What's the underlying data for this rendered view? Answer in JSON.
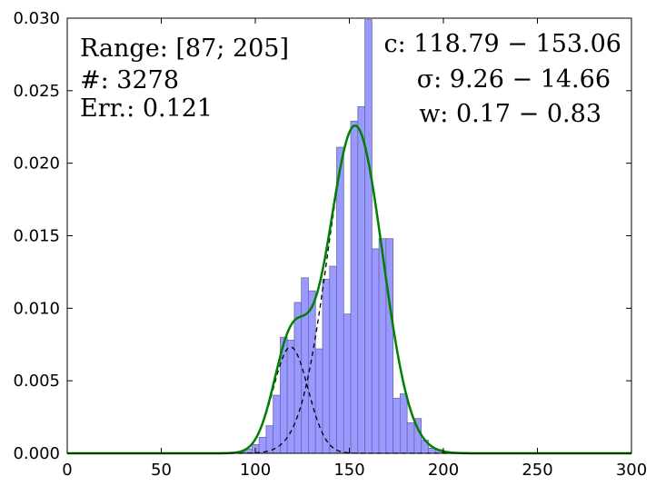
{
  "chart_data": {
    "type": "bar",
    "title": "",
    "xlabel": "",
    "ylabel": "",
    "xlim": [
      0,
      300
    ],
    "ylim": [
      0,
      0.03
    ],
    "x_ticks": [
      "0",
      "50",
      "100",
      "150",
      "200",
      "250",
      "300"
    ],
    "y_ticks": [
      "0.000",
      "0.005",
      "0.010",
      "0.015",
      "0.020",
      "0.025",
      "0.030"
    ],
    "grid": false,
    "colors": {
      "histogram_fill": "#9999ff",
      "histogram_edge": "#6a6aa8",
      "fit_line": "#008000",
      "component_line": "#000000"
    },
    "histogram": {
      "bin_width": 3.75,
      "bins": [
        {
          "x0": 87.0,
          "density": 8e-05
        },
        {
          "x0": 90.75,
          "density": 8e-05
        },
        {
          "x0": 94.5,
          "density": 0.0003
        },
        {
          "x0": 98.25,
          "density": 0.0006
        },
        {
          "x0": 102.0,
          "density": 0.0011
        },
        {
          "x0": 105.75,
          "density": 0.0019
        },
        {
          "x0": 109.5,
          "density": 0.004
        },
        {
          "x0": 113.25,
          "density": 0.008
        },
        {
          "x0": 117.0,
          "density": 0.0078
        },
        {
          "x0": 120.75,
          "density": 0.0104
        },
        {
          "x0": 124.5,
          "density": 0.0121
        },
        {
          "x0": 128.25,
          "density": 0.0112
        },
        {
          "x0": 132.0,
          "density": 0.0072
        },
        {
          "x0": 135.75,
          "density": 0.012
        },
        {
          "x0": 139.5,
          "density": 0.0129
        },
        {
          "x0": 143.25,
          "density": 0.0211
        },
        {
          "x0": 147.0,
          "density": 0.0096
        },
        {
          "x0": 150.75,
          "density": 0.0229
        },
        {
          "x0": 154.5,
          "density": 0.0239
        },
        {
          "x0": 158.25,
          "density": 0.0299
        },
        {
          "x0": 162.0,
          "density": 0.0141
        },
        {
          "x0": 165.75,
          "density": 0.0148
        },
        {
          "x0": 169.5,
          "density": 0.0148
        },
        {
          "x0": 173.25,
          "density": 0.0038
        },
        {
          "x0": 177.0,
          "density": 0.0041
        },
        {
          "x0": 180.75,
          "density": 0.0021
        },
        {
          "x0": 184.5,
          "density": 0.0024
        },
        {
          "x0": 188.25,
          "density": 0.0009
        },
        {
          "x0": 192.0,
          "density": 0.00035
        },
        {
          "x0": 195.75,
          "density": 0.00025
        },
        {
          "x0": 199.5,
          "density": 8e-05
        }
      ]
    },
    "fit": {
      "components": [
        {
          "weight": 0.17,
          "mean": 118.79,
          "sigma": 9.26
        },
        {
          "weight": 0.83,
          "mean": 153.06,
          "sigma": 14.66
        }
      ]
    },
    "annotations": {
      "left": [
        "Range: [87; 205]",
        "#: 3278",
        "Err.: 0.121"
      ],
      "right": [
        "c: 118.79 − 153.06",
        "σ: 9.26 − 14.66",
        "w: 0.17 − 0.83"
      ]
    }
  }
}
